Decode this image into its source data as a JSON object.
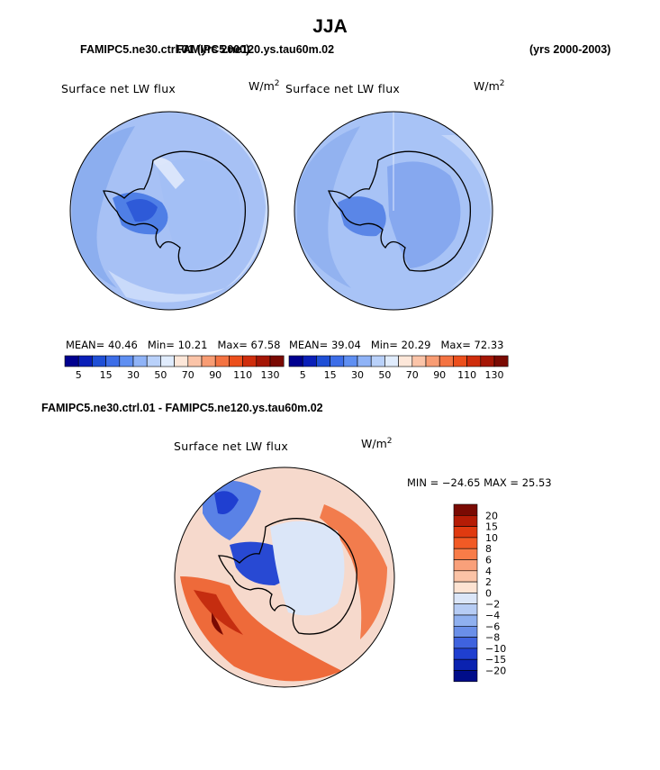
{
  "season": "JJA",
  "header": {
    "left_case_title": "FAMIPC5.ne30.ctrl.01 (yrs 2000)",
    "left_case_overlap": "FAMIPC5.ne120.ys.tau60m.02",
    "right_years": "(yrs 2000-2003)"
  },
  "top_panels": [
    {
      "title": "Surface net LW flux",
      "units": "W/m",
      "units_sup": "2",
      "stats": {
        "mean_label": "MEAN=",
        "mean": "40.46",
        "min_label": "Min=",
        "min": "10.21",
        "max_label": "Max=",
        "max": "67.58"
      }
    },
    {
      "title": "Surface net LW flux",
      "units": "W/m",
      "units_sup": "2",
      "stats": {
        "mean_label": "MEAN=",
        "mean": "39.04",
        "min_label": "Min=",
        "min": "20.29",
        "max_label": "Max=",
        "max": "72.33"
      }
    }
  ],
  "abs_colorbar": {
    "colors": [
      "#00008f",
      "#0a1fb8",
      "#1f4fd6",
      "#3d6ee8",
      "#5f8ff2",
      "#8fb3f7",
      "#b9d1fa",
      "#e0ecfd",
      "#fde7d9",
      "#fbc4a8",
      "#f89c73",
      "#f47342",
      "#ec4f1c",
      "#cf2d0c",
      "#a51605",
      "#7a0a03"
    ],
    "labels": [
      "5",
      "15",
      "30",
      "50",
      "70",
      "90",
      "110",
      "130"
    ]
  },
  "diff_title": "FAMIPC5.ne30.ctrl.01 - FAMIPC5.ne120.ys.tau60m.02",
  "diff_panel": {
    "title": "Surface net LW flux",
    "units": "W/m",
    "units_sup": "2",
    "minmax": "MIN = −24.65 MAX =  25.53"
  },
  "diff_colorbar": {
    "colors": [
      "#7a0a03",
      "#b51c06",
      "#e03a10",
      "#f25a25",
      "#f87c48",
      "#f9a07a",
      "#fbc3a6",
      "#fde3d2",
      "#dbe6f8",
      "#b6ccf4",
      "#8fb0ef",
      "#6a8fe8",
      "#3f63de",
      "#1f3fd0",
      "#0a22b0",
      "#000d8a"
    ],
    "labels": [
      "20",
      "15",
      "10",
      "8",
      "6",
      "4",
      "2",
      "0",
      "−2",
      "−4",
      "−6",
      "−8",
      "−10",
      "−15",
      "−20"
    ]
  },
  "colors": {
    "antarctica_outline": "#000000",
    "globe_outline": "#000000",
    "abs_base": "#9cbaf4",
    "diff_base": "#f6d9cc"
  }
}
